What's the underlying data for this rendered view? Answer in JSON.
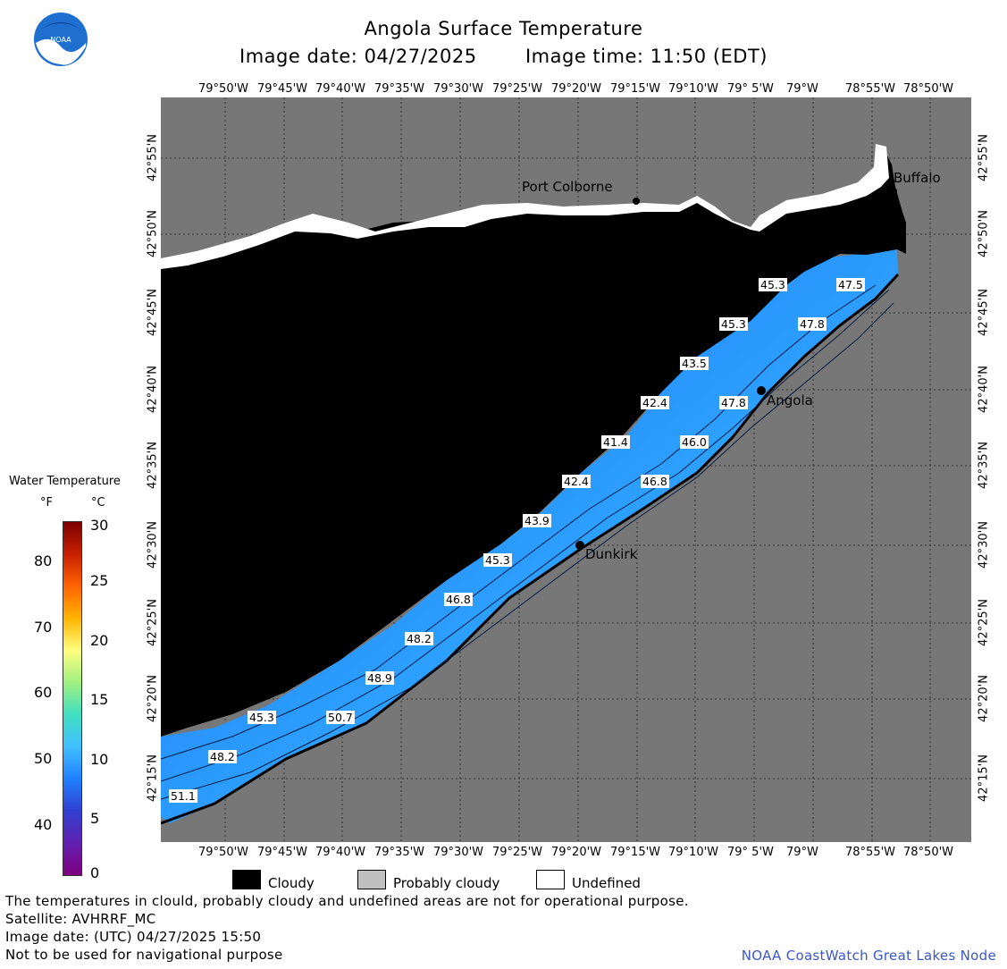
{
  "header": {
    "title": "Angola Surface Temperature",
    "image_date": "Image date: 04/27/2025",
    "image_time": "Image time: 11:50 (EDT)"
  },
  "axes": {
    "lon_labels": [
      "79°50'W",
      "79°45'W",
      "79°40'W",
      "79°35'W",
      "79°30'W",
      "79°25'W",
      "79°20'W",
      "79°15'W",
      "79°10'W",
      "79° 5'W",
      "79°W",
      "78°55'W",
      "78°50'W"
    ],
    "lat_labels": [
      "42°55'N",
      "42°50'N",
      "42°45'N",
      "42°40'N",
      "42°35'N",
      "42°30'N",
      "42°25'N",
      "42°20'N",
      "42°15'N"
    ]
  },
  "places": {
    "port_colborne": "Port Colborne",
    "buffalo": "Buffalo",
    "angola": "Angola",
    "dunkirk": "Dunkirk"
  },
  "isotherm_labels": [
    "45.3",
    "47.5",
    "45.3",
    "47.8",
    "43.5",
    "42.4",
    "47.8",
    "41.4",
    "46.0",
    "42.4",
    "46.8",
    "43.9",
    "45.3",
    "46.8",
    "48.2",
    "48.9",
    "45.3",
    "50.7",
    "48.2",
    "51.1"
  ],
  "colorbar": {
    "title": "Water Temperature",
    "unit_f": "°F",
    "unit_c": "°C",
    "f_ticks": [
      "80",
      "70",
      "60",
      "50",
      "40"
    ],
    "c_ticks": [
      "30",
      "25",
      "20",
      "15",
      "10",
      "5",
      "0"
    ],
    "colors": [
      "#7a0000",
      "#c82000",
      "#ff6400",
      "#ffb400",
      "#ffff80",
      "#a0f080",
      "#40e0c0",
      "#40c0ff",
      "#2080ff",
      "#3040d0",
      "#6020b0",
      "#800080"
    ]
  },
  "legend": {
    "cloudy": "Cloudy",
    "probably_cloudy": "Probably cloudy",
    "undefined": "Undefined",
    "cloudy_color": "#000000",
    "probably_cloudy_color": "#c0c0c0",
    "undefined_color": "#ffffff"
  },
  "footer": {
    "disclaimer": "The temperatures in clould, probably cloudy and undefined areas are not for operational purpose.",
    "satellite": "Satellite: AVHRRF_MC",
    "utc": "Image date: (UTC) 04/27/2025  15:50",
    "nav": "Not to be used for navigational purpose",
    "credit": "NOAA CoastWatch Great Lakes Node"
  },
  "colors": {
    "land": "#777777",
    "cloud": "#000000",
    "water_mid": "#2a8cff",
    "water_shore": "#55d8ff"
  },
  "logo": {
    "text": "NOAA"
  }
}
